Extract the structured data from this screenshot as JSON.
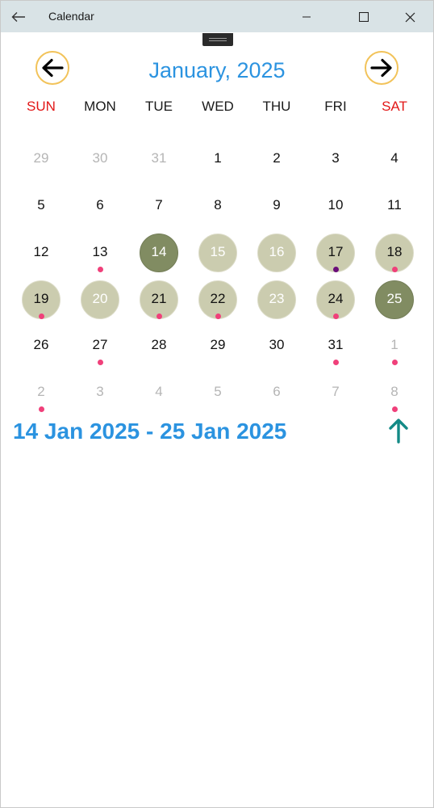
{
  "window": {
    "title": "Calendar",
    "back_icon": "back-arrow-icon",
    "minimize_icon": "minimize-icon",
    "maximize_icon": "maximize-icon",
    "close_icon": "close-icon"
  },
  "colors": {
    "accent": "#2b93e0",
    "weekend": "#e21818",
    "range_fill": "#cbccaf",
    "endpoint_fill": "#818c62",
    "event_dot": "#f0407a",
    "event_dot_alt": "#6a0d7a",
    "nav_border": "#f2c35a",
    "up_arrow": "#138a86"
  },
  "header": {
    "title": "January, 2025",
    "prev_icon": "arrow-left-icon",
    "next_icon": "arrow-right-icon"
  },
  "weekdays": [
    "SUN",
    "MON",
    "TUE",
    "WED",
    "THU",
    "FRI",
    "SAT"
  ],
  "weeks": [
    [
      {
        "d": "29",
        "other": true
      },
      {
        "d": "30",
        "other": true
      },
      {
        "d": "31",
        "other": true
      },
      {
        "d": "1"
      },
      {
        "d": "2"
      },
      {
        "d": "3"
      },
      {
        "d": "4"
      }
    ],
    [
      {
        "d": "5"
      },
      {
        "d": "6"
      },
      {
        "d": "7"
      },
      {
        "d": "8"
      },
      {
        "d": "9"
      },
      {
        "d": "10"
      },
      {
        "d": "11"
      }
    ],
    [
      {
        "d": "12"
      },
      {
        "d": "13",
        "dot": "pink"
      },
      {
        "d": "14",
        "state": "endpoint",
        "text": "white"
      },
      {
        "d": "15",
        "state": "range",
        "text": "white"
      },
      {
        "d": "16",
        "state": "range",
        "text": "white"
      },
      {
        "d": "17",
        "state": "range",
        "dot": "purple"
      },
      {
        "d": "18",
        "state": "range",
        "dot": "pink"
      }
    ],
    [
      {
        "d": "19",
        "state": "range",
        "dot": "pink"
      },
      {
        "d": "20",
        "state": "range",
        "text": "white"
      },
      {
        "d": "21",
        "state": "range",
        "dot": "pink"
      },
      {
        "d": "22",
        "state": "range",
        "dot": "pink"
      },
      {
        "d": "23",
        "state": "range",
        "text": "white"
      },
      {
        "d": "24",
        "state": "range",
        "dot": "pink"
      },
      {
        "d": "25",
        "state": "endpoint",
        "text": "white"
      }
    ],
    [
      {
        "d": "26"
      },
      {
        "d": "27",
        "dot": "pink"
      },
      {
        "d": "28"
      },
      {
        "d": "29"
      },
      {
        "d": "30"
      },
      {
        "d": "31",
        "dot": "pink"
      },
      {
        "d": "1",
        "other": true,
        "dot": "pink"
      }
    ],
    [
      {
        "d": "2",
        "other": true,
        "dot": "pink"
      },
      {
        "d": "3",
        "other": true
      },
      {
        "d": "4",
        "other": true
      },
      {
        "d": "5",
        "other": true
      },
      {
        "d": "6",
        "other": true
      },
      {
        "d": "7",
        "other": true
      },
      {
        "d": "8",
        "other": true,
        "dot": "pink"
      }
    ]
  ],
  "selection": {
    "range_label": "14 Jan 2025 - 25 Jan 2025",
    "up_icon": "arrow-up-icon"
  }
}
